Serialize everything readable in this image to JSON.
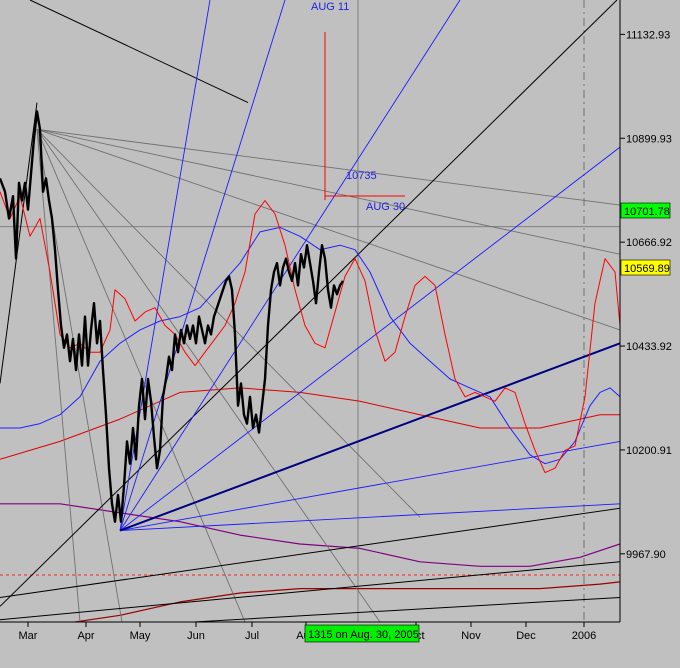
{
  "chart_data": {
    "type": "line",
    "xlabels": [
      "Mar",
      "Apr",
      "May",
      "Jun",
      "Jul",
      "Aug",
      "Oct",
      "Nov",
      "Dec",
      "2006"
    ],
    "yticks": [
      11132.93,
      10899.93,
      10666.92,
      10433.92,
      10200.91,
      9967.9
    ],
    "ylim": [
      9815,
      11210
    ],
    "price_tag": "10701.78",
    "last_tag": "10569.89",
    "status_label": "1315 on Aug. 30, 2005",
    "annotations": {
      "aug11": "AUG 11",
      "aug30": "AUG 30",
      "level": "10735"
    },
    "price_series": [
      [
        0,
        10810
      ],
      [
        5,
        10780
      ],
      [
        9,
        10720
      ],
      [
        13,
        10770
      ],
      [
        16,
        10630
      ],
      [
        19,
        10800
      ],
      [
        22,
        10760
      ],
      [
        25,
        10800
      ],
      [
        28,
        10740
      ],
      [
        31,
        10820
      ],
      [
        34,
        10900
      ],
      [
        37,
        10960
      ],
      [
        40,
        10920
      ],
      [
        43,
        10780
      ],
      [
        46,
        10810
      ],
      [
        49,
        10760
      ],
      [
        52,
        10720
      ],
      [
        55,
        10650
      ],
      [
        58,
        10560
      ],
      [
        61,
        10480
      ],
      [
        64,
        10430
      ],
      [
        67,
        10460
      ],
      [
        70,
        10400
      ],
      [
        73,
        10450
      ],
      [
        76,
        10380
      ],
      [
        79,
        10460
      ],
      [
        82,
        10390
      ],
      [
        85,
        10500
      ],
      [
        88,
        10390
      ],
      [
        91,
        10470
      ],
      [
        94,
        10530
      ],
      [
        97,
        10440
      ],
      [
        100,
        10490
      ],
      [
        103,
        10380
      ],
      [
        106,
        10280
      ],
      [
        109,
        10160
      ],
      [
        112,
        10080
      ],
      [
        115,
        10040
      ],
      [
        118,
        10100
      ],
      [
        121,
        10040
      ],
      [
        124,
        10120
      ],
      [
        127,
        10220
      ],
      [
        130,
        10170
      ],
      [
        133,
        10250
      ],
      [
        136,
        10180
      ],
      [
        139,
        10300
      ],
      [
        142,
        10360
      ],
      [
        145,
        10270
      ],
      [
        148,
        10360
      ],
      [
        151,
        10310
      ],
      [
        154,
        10230
      ],
      [
        157,
        10160
      ],
      [
        160,
        10200
      ],
      [
        163,
        10320
      ],
      [
        166,
        10360
      ],
      [
        169,
        10410
      ],
      [
        172,
        10380
      ],
      [
        175,
        10460
      ],
      [
        178,
        10420
      ],
      [
        181,
        10470
      ],
      [
        184,
        10440
      ],
      [
        187,
        10480
      ],
      [
        190,
        10450
      ],
      [
        193,
        10480
      ],
      [
        196,
        10440
      ],
      [
        199,
        10500
      ],
      [
        202,
        10470
      ],
      [
        205,
        10440
      ],
      [
        208,
        10480
      ],
      [
        211,
        10460
      ],
      [
        214,
        10500
      ],
      [
        217,
        10520
      ],
      [
        220,
        10540
      ],
      [
        223,
        10560
      ],
      [
        226,
        10580
      ],
      [
        229,
        10590
      ],
      [
        232,
        10560
      ],
      [
        235,
        10460
      ],
      [
        238,
        10300
      ],
      [
        241,
        10350
      ],
      [
        244,
        10280
      ],
      [
        247,
        10260
      ],
      [
        250,
        10320
      ],
      [
        253,
        10250
      ],
      [
        256,
        10280
      ],
      [
        259,
        10240
      ],
      [
        262,
        10300
      ],
      [
        265,
        10360
      ],
      [
        268,
        10480
      ],
      [
        271,
        10560
      ],
      [
        274,
        10600
      ],
      [
        277,
        10620
      ],
      [
        280,
        10570
      ],
      [
        283,
        10610
      ],
      [
        286,
        10630
      ],
      [
        289,
        10600
      ],
      [
        292,
        10580
      ],
      [
        295,
        10620
      ],
      [
        298,
        10570
      ],
      [
        301,
        10640
      ],
      [
        304,
        10610
      ],
      [
        307,
        10660
      ],
      [
        310,
        10620
      ],
      [
        313,
        10580
      ],
      [
        316,
        10530
      ],
      [
        319,
        10600
      ],
      [
        322,
        10660
      ],
      [
        325,
        10630
      ],
      [
        328,
        10560
      ],
      [
        331,
        10520
      ],
      [
        334,
        10570
      ],
      [
        337,
        10550
      ],
      [
        340,
        10570
      ],
      [
        343,
        10580
      ]
    ],
    "red_band": [
      [
        0,
        10780
      ],
      [
        10,
        10720
      ],
      [
        20,
        10770
      ],
      [
        30,
        10680
      ],
      [
        40,
        10720
      ],
      [
        50,
        10600
      ],
      [
        60,
        10460
      ],
      [
        70,
        10430
      ],
      [
        80,
        10440
      ],
      [
        90,
        10420
      ],
      [
        100,
        10420
      ],
      [
        110,
        10470
      ],
      [
        115,
        10560
      ],
      [
        125,
        10540
      ],
      [
        135,
        10490
      ],
      [
        145,
        10510
      ],
      [
        155,
        10520
      ],
      [
        165,
        10480
      ],
      [
        175,
        10460
      ],
      [
        185,
        10420
      ],
      [
        195,
        10390
      ],
      [
        205,
        10420
      ],
      [
        215,
        10450
      ],
      [
        225,
        10480
      ],
      [
        235,
        10530
      ],
      [
        245,
        10600
      ],
      [
        255,
        10730
      ],
      [
        265,
        10760
      ],
      [
        275,
        10730
      ],
      [
        285,
        10660
      ],
      [
        295,
        10560
      ],
      [
        305,
        10480
      ],
      [
        315,
        10440
      ],
      [
        325,
        10430
      ],
      [
        335,
        10510
      ],
      [
        345,
        10590
      ],
      [
        355,
        10630
      ],
      [
        365,
        10580
      ],
      [
        375,
        10470
      ],
      [
        385,
        10400
      ],
      [
        395,
        10420
      ],
      [
        405,
        10500
      ],
      [
        415,
        10570
      ],
      [
        425,
        10590
      ],
      [
        435,
        10570
      ],
      [
        445,
        10460
      ],
      [
        455,
        10360
      ],
      [
        465,
        10320
      ],
      [
        475,
        10330
      ],
      [
        485,
        10320
      ],
      [
        495,
        10310
      ],
      [
        505,
        10340
      ],
      [
        515,
        10330
      ],
      [
        525,
        10260
      ],
      [
        535,
        10200
      ],
      [
        545,
        10150
      ],
      [
        555,
        10160
      ],
      [
        565,
        10200
      ],
      [
        575,
        10210
      ],
      [
        585,
        10320
      ],
      [
        595,
        10530
      ],
      [
        605,
        10630
      ],
      [
        615,
        10600
      ],
      [
        620,
        10480
      ]
    ],
    "blue_band": [
      [
        0,
        10250
      ],
      [
        20,
        10250
      ],
      [
        40,
        10260
      ],
      [
        60,
        10280
      ],
      [
        80,
        10320
      ],
      [
        100,
        10400
      ],
      [
        120,
        10440
      ],
      [
        140,
        10470
      ],
      [
        160,
        10490
      ],
      [
        180,
        10500
      ],
      [
        200,
        10520
      ],
      [
        220,
        10570
      ],
      [
        240,
        10620
      ],
      [
        260,
        10690
      ],
      [
        280,
        10700
      ],
      [
        300,
        10680
      ],
      [
        320,
        10650
      ],
      [
        340,
        10660
      ],
      [
        355,
        10650
      ],
      [
        370,
        10600
      ],
      [
        390,
        10500
      ],
      [
        410,
        10440
      ],
      [
        430,
        10400
      ],
      [
        450,
        10360
      ],
      [
        470,
        10340
      ],
      [
        490,
        10320
      ],
      [
        510,
        10250
      ],
      [
        530,
        10190
      ],
      [
        545,
        10170
      ],
      [
        560,
        10180
      ],
      [
        575,
        10220
      ],
      [
        590,
        10300
      ],
      [
        600,
        10330
      ],
      [
        610,
        10340
      ],
      [
        620,
        10320
      ]
    ],
    "red_ma": [
      [
        0,
        10180
      ],
      [
        60,
        10220
      ],
      [
        120,
        10270
      ],
      [
        180,
        10330
      ],
      [
        240,
        10340
      ],
      [
        300,
        10330
      ],
      [
        360,
        10310
      ],
      [
        420,
        10280
      ],
      [
        480,
        10250
      ],
      [
        540,
        10250
      ],
      [
        600,
        10280
      ],
      [
        620,
        10280
      ]
    ],
    "purple_ma": [
      [
        0,
        10080
      ],
      [
        60,
        10080
      ],
      [
        120,
        10060
      ],
      [
        180,
        10040
      ],
      [
        240,
        10010
      ],
      [
        300,
        9990
      ],
      [
        360,
        9980
      ],
      [
        420,
        9950
      ],
      [
        480,
        9940
      ],
      [
        530,
        9940
      ],
      [
        580,
        9960
      ],
      [
        620,
        9990
      ]
    ],
    "maroon_ma": [
      [
        0,
        9800
      ],
      [
        60,
        9810
      ],
      [
        120,
        9830
      ],
      [
        180,
        9860
      ],
      [
        240,
        9880
      ],
      [
        300,
        9890
      ],
      [
        360,
        9890
      ],
      [
        420,
        9890
      ],
      [
        480,
        9890
      ],
      [
        540,
        9890
      ],
      [
        600,
        9900
      ],
      [
        620,
        9905
      ]
    ],
    "black_lines": [
      [
        [
          0,
          10350
        ],
        [
          37,
          10980
        ]
      ],
      [
        [
          30,
          11210
        ],
        [
          248,
          10980
        ]
      ],
      [
        [
          0,
          9850
        ],
        [
          617,
          11210
        ]
      ],
      [
        [
          0,
          9870
        ],
        [
          620,
          10070
        ]
      ],
      [
        [
          0,
          9820
        ],
        [
          620,
          9950
        ]
      ],
      [
        [
          0,
          9790
        ],
        [
          620,
          9870
        ]
      ]
    ],
    "gray_from_high": [
      [
        [
          37,
          10920
        ],
        [
          620,
          10750
        ]
      ],
      [
        [
          37,
          10920
        ],
        [
          620,
          10640
        ]
      ],
      [
        [
          37,
          10920
        ],
        [
          620,
          10470
        ]
      ],
      [
        [
          37,
          10920
        ],
        [
          420,
          10050
        ]
      ],
      [
        [
          37,
          10920
        ],
        [
          380,
          9815
        ]
      ],
      [
        [
          37,
          10920
        ],
        [
          245,
          9815
        ]
      ],
      [
        [
          37,
          10920
        ],
        [
          122,
          9815
        ]
      ],
      [
        [
          37,
          10920
        ],
        [
          80,
          9815
        ]
      ]
    ],
    "blue_fans": [
      [
        [
          120,
          10020
        ],
        [
          620,
          10880
        ]
      ],
      [
        [
          120,
          10020
        ],
        [
          210,
          11210
        ]
      ],
      [
        [
          120,
          10020
        ],
        [
          285,
          11210
        ]
      ],
      [
        [
          120,
          10020
        ],
        [
          460,
          11210
        ]
      ],
      [
        [
          120,
          10020
        ],
        [
          620,
          10080
        ]
      ],
      [
        [
          120,
          10020
        ],
        [
          620,
          10220
        ]
      ]
    ],
    "dark_blue_fan": [
      [
        120,
        10020
      ],
      [
        620,
        10440
      ]
    ],
    "dark_gray_lines": [
      [
        [
          0,
          10050
        ],
        [
          620,
          10030
        ]
      ]
    ]
  }
}
